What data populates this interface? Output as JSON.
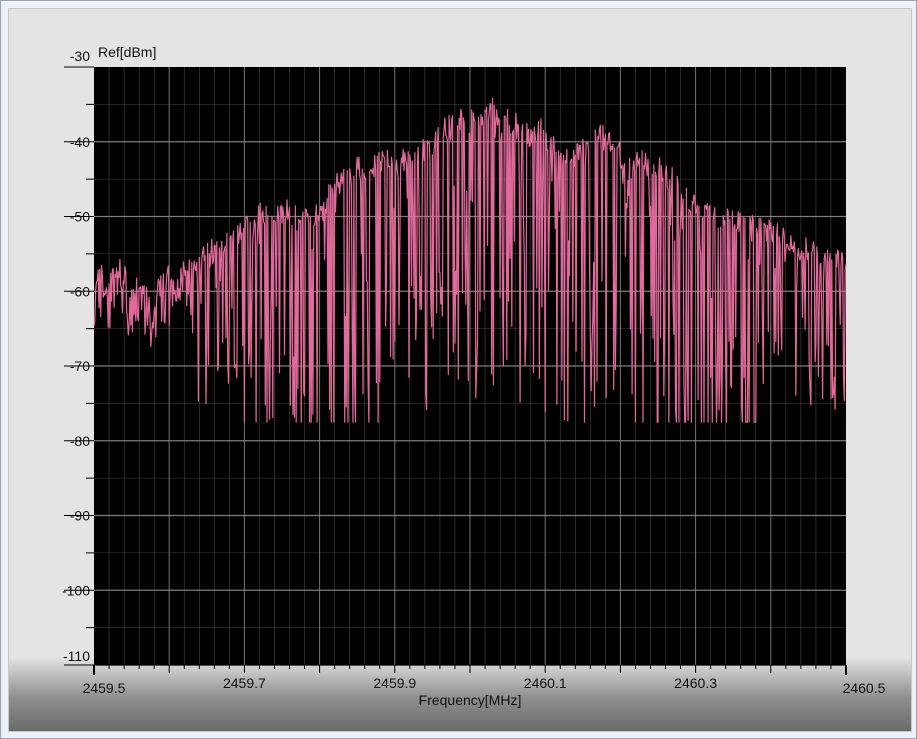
{
  "chart_data": {
    "type": "line",
    "title": "",
    "ylabel": "Ref[dBm]",
    "xlabel": "Frequency[MHz]",
    "xlim": [
      2459.5,
      2460.5
    ],
    "ylim": [
      -110,
      -30
    ],
    "x_ticks": [
      2459.5,
      2459.7,
      2459.9,
      2460.1,
      2460.3,
      2460.5
    ],
    "x_tick_labels": [
      "2459.5",
      "2459.7",
      "2459.9",
      "2460.1",
      "2460.3",
      "2460.5"
    ],
    "y_ticks": [
      -30,
      -40,
      -50,
      -60,
      -70,
      -80,
      -90,
      -100,
      -110
    ],
    "y_tick_labels": [
      "-30",
      "-40",
      "-50",
      "-60",
      "-70",
      "-80",
      "-90",
      "-100",
      "-110"
    ],
    "grid": true,
    "background": "#000000",
    "grid_color": "#8a8a8a",
    "series": [
      {
        "color": "#e06a9a",
        "x": [
          2459.5,
          2459.51,
          2459.52,
          2459.53,
          2459.54,
          2459.55,
          2459.56,
          2459.57,
          2459.58,
          2459.59,
          2459.6,
          2459.61,
          2459.62,
          2459.63,
          2459.64,
          2459.65,
          2459.66,
          2459.67,
          2459.68,
          2459.69,
          2459.7,
          2459.71,
          2459.72,
          2459.73,
          2459.74,
          2459.75,
          2459.76,
          2459.77,
          2459.78,
          2459.79,
          2459.8,
          2459.81,
          2459.82,
          2459.83,
          2459.84,
          2459.85,
          2459.86,
          2459.87,
          2459.88,
          2459.89,
          2459.9,
          2459.91,
          2459.92,
          2459.93,
          2459.94,
          2459.95,
          2459.96,
          2459.97,
          2459.98,
          2459.99,
          2460.0,
          2460.01,
          2460.02,
          2460.03,
          2460.04,
          2460.05,
          2460.06,
          2460.07,
          2460.08,
          2460.09,
          2460.1,
          2460.11,
          2460.12,
          2460.13,
          2460.14,
          2460.15,
          2460.16,
          2460.17,
          2460.18,
          2460.19,
          2460.2,
          2460.21,
          2460.22,
          2460.23,
          2460.24,
          2460.25,
          2460.26,
          2460.27,
          2460.28,
          2460.29,
          2460.3,
          2460.31,
          2460.32,
          2460.33,
          2460.34,
          2460.35,
          2460.36,
          2460.37,
          2460.38,
          2460.39,
          2460.4,
          2460.41,
          2460.42,
          2460.43,
          2460.44,
          2460.45,
          2460.46,
          2460.47,
          2460.48,
          2460.49,
          2460.5
        ],
        "y": [
          -57,
          -56.5,
          -58,
          -55.5,
          -56,
          -59,
          -57.5,
          -58,
          -60,
          -57,
          -56.5,
          -58,
          -55.5,
          -55,
          -54,
          -52.5,
          -53,
          -52,
          -50.5,
          -51,
          -49.5,
          -50,
          -48,
          -47.5,
          -48.5,
          -48,
          -47.5,
          -48.5,
          -47.5,
          -48,
          -47.5,
          -46,
          -44.5,
          -43.5,
          -42.5,
          -42,
          -41.5,
          -41.5,
          -41,
          -41,
          -41.5,
          -40.5,
          -40,
          -39.5,
          -39.5,
          -38.5,
          -37.5,
          -36.5,
          -36,
          -35.5,
          -35.5,
          -35.5,
          -34.5,
          -33.5,
          -35,
          -35.5,
          -36,
          -37,
          -37.5,
          -36.5,
          -37.5,
          -38.5,
          -40,
          -41,
          -40.5,
          -38.5,
          -38.5,
          -37,
          -38,
          -39,
          -40,
          -42,
          -41.5,
          -41,
          -42,
          -41.5,
          -42.5,
          -43.5,
          -44.5,
          -45.5,
          -47,
          -47.5,
          -48.5,
          -48.5,
          -49,
          -49,
          -49,
          -49,
          -49.5,
          -50,
          -50.5,
          -50.5,
          -51.5,
          -52,
          -52.5,
          -53,
          -53.5,
          -53.5,
          -54,
          -54.5,
          -54
        ]
      }
    ]
  }
}
